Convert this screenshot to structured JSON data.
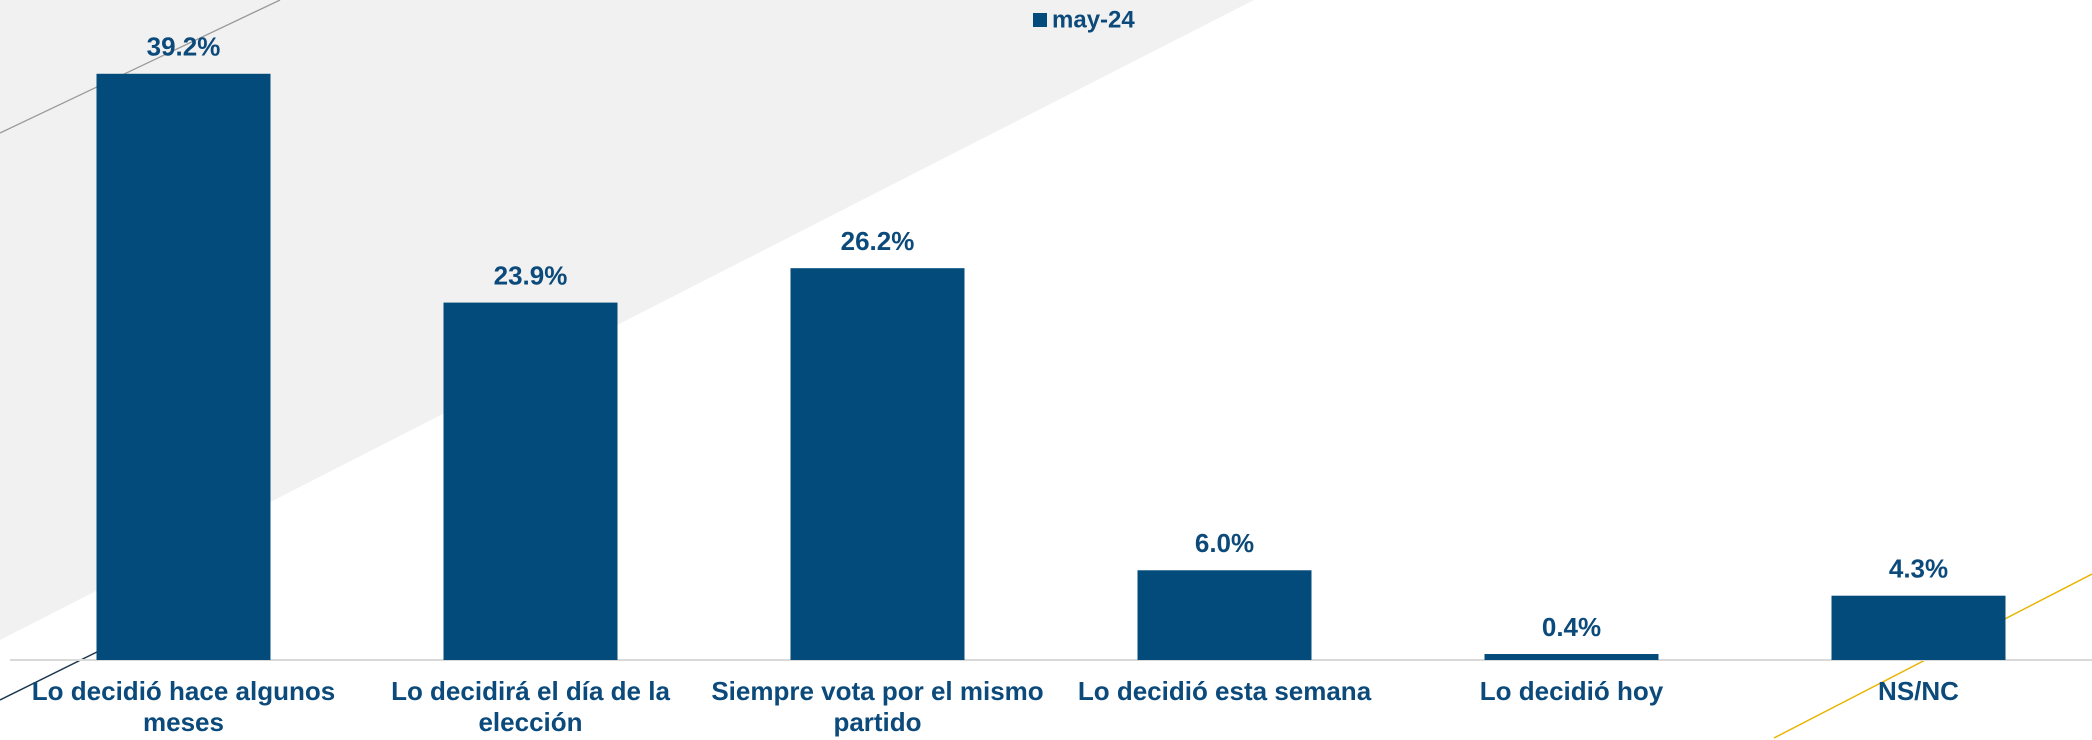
{
  "chart_data": {
    "type": "bar",
    "categories": [
      "Lo decidió hace algunos meses",
      "Lo decidirá el día de la elección",
      "Siempre vota por el mismo partido",
      "Lo decidió esta semana",
      "Lo decidió hoy",
      "NS/NC"
    ],
    "series": [
      {
        "name": "may-24",
        "color": "#034b7a",
        "values": [
          39.2,
          23.9,
          26.2,
          6.0,
          0.4,
          4.3
        ],
        "value_labels": [
          "39.2%",
          "23.9%",
          "26.2%",
          "6.0%",
          "0.4%",
          "4.3%"
        ]
      }
    ],
    "ylim": [
      0,
      44
    ],
    "legend": "top"
  }
}
